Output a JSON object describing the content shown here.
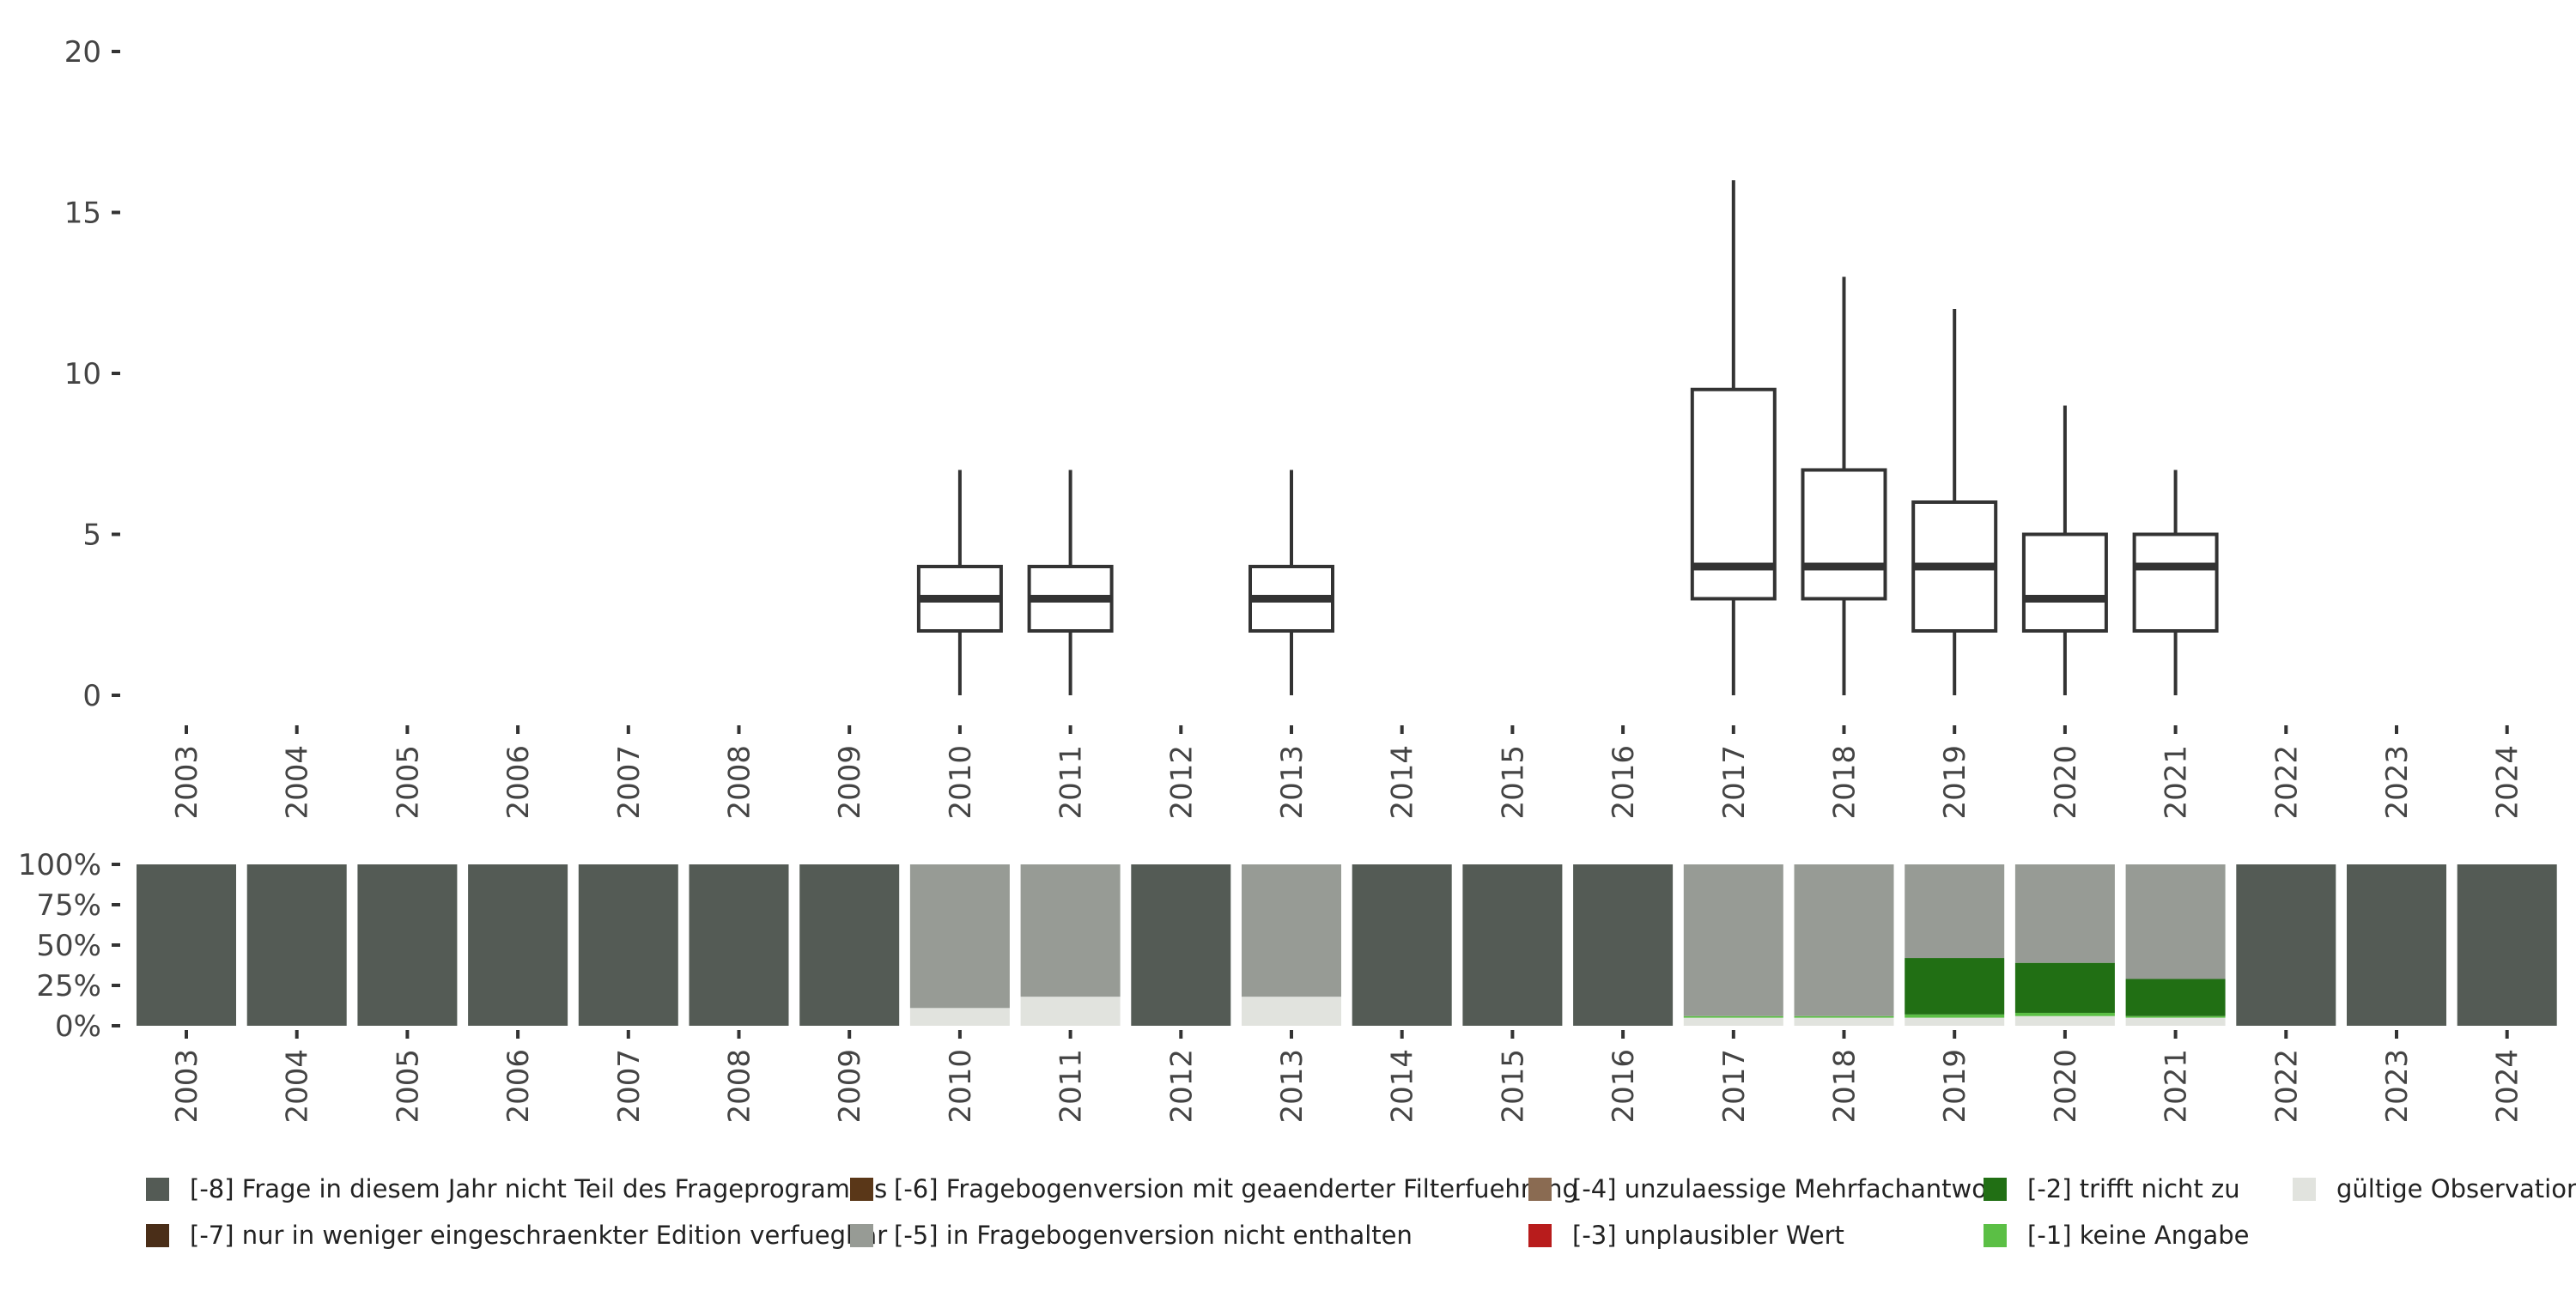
{
  "chart_data": {
    "type": "boxplot",
    "title": "",
    "xlabel": "",
    "ylabel": "",
    "ylim": [
      0,
      20
    ],
    "yticks": [
      0,
      5,
      10,
      15,
      20
    ],
    "categories": [
      "2003",
      "2004",
      "2005",
      "2006",
      "2007",
      "2008",
      "2009",
      "2010",
      "2011",
      "2012",
      "2013",
      "2014",
      "2015",
      "2016",
      "2017",
      "2018",
      "2019",
      "2020",
      "2021",
      "2022",
      "2023",
      "2024"
    ],
    "boxplot": [
      {
        "year": "2010",
        "min": 0,
        "q1": 2,
        "median": 3,
        "q3": 4,
        "max": 7
      },
      {
        "year": "2011",
        "min": 0,
        "q1": 2,
        "median": 3,
        "q3": 4,
        "max": 7
      },
      {
        "year": "2013",
        "min": 0,
        "q1": 2,
        "median": 3,
        "q3": 4,
        "max": 7
      },
      {
        "year": "2017",
        "min": 0,
        "q1": 3,
        "median": 4,
        "q3": 9.5,
        "max": 16
      },
      {
        "year": "2018",
        "min": 0,
        "q1": 3,
        "median": 4,
        "q3": 7,
        "max": 13
      },
      {
        "year": "2019",
        "min": 0,
        "q1": 2,
        "median": 4,
        "q3": 6,
        "max": 12
      },
      {
        "year": "2020",
        "min": 0,
        "q1": 2,
        "median": 3,
        "q3": 5,
        "max": 9
      },
      {
        "year": "2021",
        "min": 0,
        "q1": 2,
        "median": 4,
        "q3": 5,
        "max": 7
      }
    ],
    "stacked": {
      "type": "stacked_bar_percent",
      "yticks": [
        "0%",
        "25%",
        "50%",
        "75%",
        "100%"
      ],
      "yticks_values": [
        0,
        25,
        50,
        75,
        100
      ],
      "series": [
        {
          "name": "gültige Observationen",
          "color": "#e1e3de",
          "values": [
            0,
            0,
            0,
            0,
            0,
            0,
            0,
            11,
            18,
            0,
            18,
            0,
            0,
            0,
            5,
            5,
            5,
            6,
            5,
            0,
            0,
            0
          ]
        },
        {
          "name": "[-1] keine Angabe",
          "color": "#5bbf45",
          "values": [
            0,
            0,
            0,
            0,
            0,
            0,
            0,
            0,
            0,
            0,
            0,
            0,
            0,
            0,
            1,
            1,
            2,
            2,
            1,
            0,
            0,
            0
          ]
        },
        {
          "name": "[-2] trifft nicht zu",
          "color": "#216f14",
          "values": [
            0,
            0,
            0,
            0,
            0,
            0,
            0,
            0,
            0,
            0,
            0,
            0,
            0,
            0,
            0,
            0,
            35,
            31,
            23,
            0,
            0,
            0
          ]
        },
        {
          "name": "[-3] unplausibler Wert",
          "color": "#b81c1c",
          "values": [
            0,
            0,
            0,
            0,
            0,
            0,
            0,
            0,
            0,
            0,
            0,
            0,
            0,
            0,
            0,
            0,
            0,
            0,
            0,
            0,
            0,
            0
          ]
        },
        {
          "name": "[-4] unzulaessige Mehrfachantwort",
          "color": "#8a6b52",
          "values": [
            0,
            0,
            0,
            0,
            0,
            0,
            0,
            0,
            0,
            0,
            0,
            0,
            0,
            0,
            0,
            0,
            0,
            0,
            0,
            0,
            0,
            0
          ]
        },
        {
          "name": "[-5] in Fragebogenversion nicht enthalten",
          "color": "#979b95",
          "values": [
            0,
            0,
            0,
            0,
            0,
            0,
            0,
            89,
            82,
            0,
            82,
            0,
            0,
            0,
            94,
            94,
            58,
            61,
            71,
            0,
            0,
            0
          ]
        },
        {
          "name": "[-6] Fragebogenversion mit geaenderter Filterfuehrung",
          "color": "#5a3718",
          "values": [
            0,
            0,
            0,
            0,
            0,
            0,
            0,
            0,
            0,
            0,
            0,
            0,
            0,
            0,
            0,
            0,
            0,
            0,
            0,
            0,
            0,
            0
          ]
        },
        {
          "name": "[-7] nur in weniger eingeschraenkter Edition verfuegbar",
          "color": "#4a2e18",
          "values": [
            0,
            0,
            0,
            0,
            0,
            0,
            0,
            0,
            0,
            0,
            0,
            0,
            0,
            0,
            0,
            0,
            0,
            0,
            0,
            0,
            0,
            0
          ]
        },
        {
          "name": "[-8] Frage in diesem Jahr nicht Teil des Frageprogramms",
          "color": "#545b55",
          "values": [
            100,
            100,
            100,
            100,
            100,
            100,
            100,
            0,
            0,
            100,
            0,
            100,
            100,
            100,
            0,
            0,
            0,
            0,
            0,
            100,
            100,
            100
          ]
        }
      ]
    },
    "legend": [
      {
        "label": "[-8] Frage in diesem Jahr nicht Teil des Frageprogramms",
        "color": "#545b55"
      },
      {
        "label": "[-6] Fragebogenversion mit geaenderter Filterfuehrung",
        "color": "#5a3718"
      },
      {
        "label": "[-4] unzulaessige Mehrfachantwort",
        "color": "#8a6b52"
      },
      {
        "label": "[-2] trifft nicht zu",
        "color": "#216f14"
      },
      {
        "label": "gültige Observationen",
        "color": "#e1e3de"
      },
      {
        "label": "[-7] nur in weniger eingeschraenkter Edition verfuegbar",
        "color": "#4a2e18"
      },
      {
        "label": "[-5] in Fragebogenversion nicht enthalten",
        "color": "#979b95"
      },
      {
        "label": "[-3] unplausibler Wert",
        "color": "#b81c1c"
      },
      {
        "label": "[-1] keine Angabe",
        "color": "#5bbf45"
      }
    ],
    "legend_position": "bottom"
  }
}
